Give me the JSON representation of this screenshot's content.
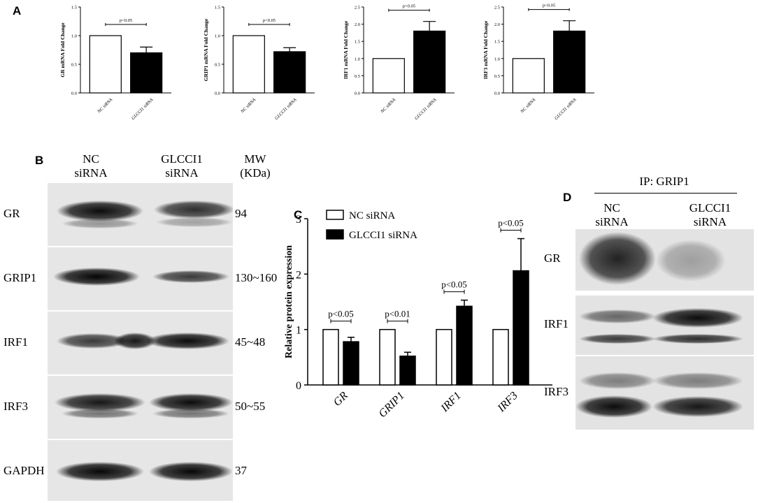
{
  "panels": {
    "a": "A",
    "b": "B",
    "c": "C",
    "d": "D"
  },
  "colors": {
    "nc": "#ffffff",
    "glcci1": "#000000",
    "stroke": "#000000"
  },
  "chart_data": [
    {
      "panel": "A",
      "type": "bar",
      "categories": [
        "NC siRNA",
        "GLCCI1 siRNA"
      ],
      "values": [
        1.0,
        0.7
      ],
      "errors": [
        0,
        0.1
      ],
      "ylabel": "GR mRNA Fold Change",
      "ylim": [
        0,
        1.5
      ],
      "yticks": [
        "0.0",
        "0.5",
        "1.0",
        "1.5"
      ],
      "annotation": "p<0.05"
    },
    {
      "panel": "A",
      "type": "bar",
      "categories": [
        "NC siRNA",
        "GLCCI1 siRNA"
      ],
      "values": [
        1.0,
        0.72
      ],
      "errors": [
        0,
        0.07
      ],
      "ylabel": "GRIP1 mRNA Fold Change",
      "ylim": [
        0,
        1.5
      ],
      "yticks": [
        "0.0",
        "0.5",
        "1.0",
        "1.5"
      ],
      "annotation": "p<0.05"
    },
    {
      "panel": "A",
      "type": "bar",
      "categories": [
        "NC siRNA",
        "GLCCI1 siRNA"
      ],
      "values": [
        1.0,
        1.8
      ],
      "errors": [
        0,
        0.28
      ],
      "ylabel": "IRF1 mRNA Fold Change",
      "ylim": [
        0,
        2.5
      ],
      "yticks": [
        "0.0",
        "0.5",
        "1.0",
        "1.5",
        "2.0",
        "2.5"
      ],
      "annotation": "p<0.05"
    },
    {
      "panel": "A",
      "type": "bar",
      "categories": [
        "NC siRNA",
        "GLCCI1 siRNA"
      ],
      "values": [
        1.0,
        1.8
      ],
      "errors": [
        0,
        0.3
      ],
      "ylabel": "IRF3 mRNA Fold Change",
      "ylim": [
        0,
        2.5
      ],
      "yticks": [
        "0.0",
        "0.5",
        "1.0",
        "1.5",
        "2.0",
        "2.5"
      ],
      "annotation": "p<0.05"
    },
    {
      "panel": "C",
      "type": "bar",
      "categories": [
        "GR",
        "GRIP1",
        "IRF1",
        "IRF3"
      ],
      "series": [
        {
          "name": "NC siRNA",
          "values": [
            1.0,
            1.0,
            1.0,
            1.0
          ],
          "errors": [
            0,
            0,
            0,
            0
          ]
        },
        {
          "name": "GLCCI1 siRNA",
          "values": [
            0.78,
            0.52,
            1.42,
            2.06
          ],
          "errors": [
            0.08,
            0.07,
            0.11,
            0.58
          ]
        }
      ],
      "annotations": [
        "p<0.05",
        "p<0.01",
        "p<0.05",
        "p<0.05"
      ],
      "ylabel": "Relative protein expression",
      "ylim": [
        0,
        3
      ],
      "yticks": [
        "0",
        "1",
        "2",
        "3"
      ],
      "legend": "top-left"
    }
  ],
  "blot_b": {
    "header_nc": [
      "NC",
      "siRNA"
    ],
    "header_glcci1": [
      "GLCCI1",
      "siRNA"
    ],
    "header_mw": [
      "MW",
      "(KDa)"
    ],
    "rows": [
      {
        "label": "GR",
        "mw": "94"
      },
      {
        "label": "GRIP1",
        "mw": "130~160"
      },
      {
        "label": "IRF1",
        "mw": "45~48"
      },
      {
        "label": "IRF3",
        "mw": "50~55"
      },
      {
        "label": "GAPDH",
        "mw": "37"
      }
    ]
  },
  "blot_d": {
    "ip_title": "IP: GRIP1",
    "header_nc": [
      "NC",
      "siRNA"
    ],
    "header_glcci1": [
      "GLCCI1",
      "siRNA"
    ],
    "rows": [
      {
        "label": "GR"
      },
      {
        "label": "IRF1"
      },
      {
        "label": "IRF3"
      }
    ]
  }
}
